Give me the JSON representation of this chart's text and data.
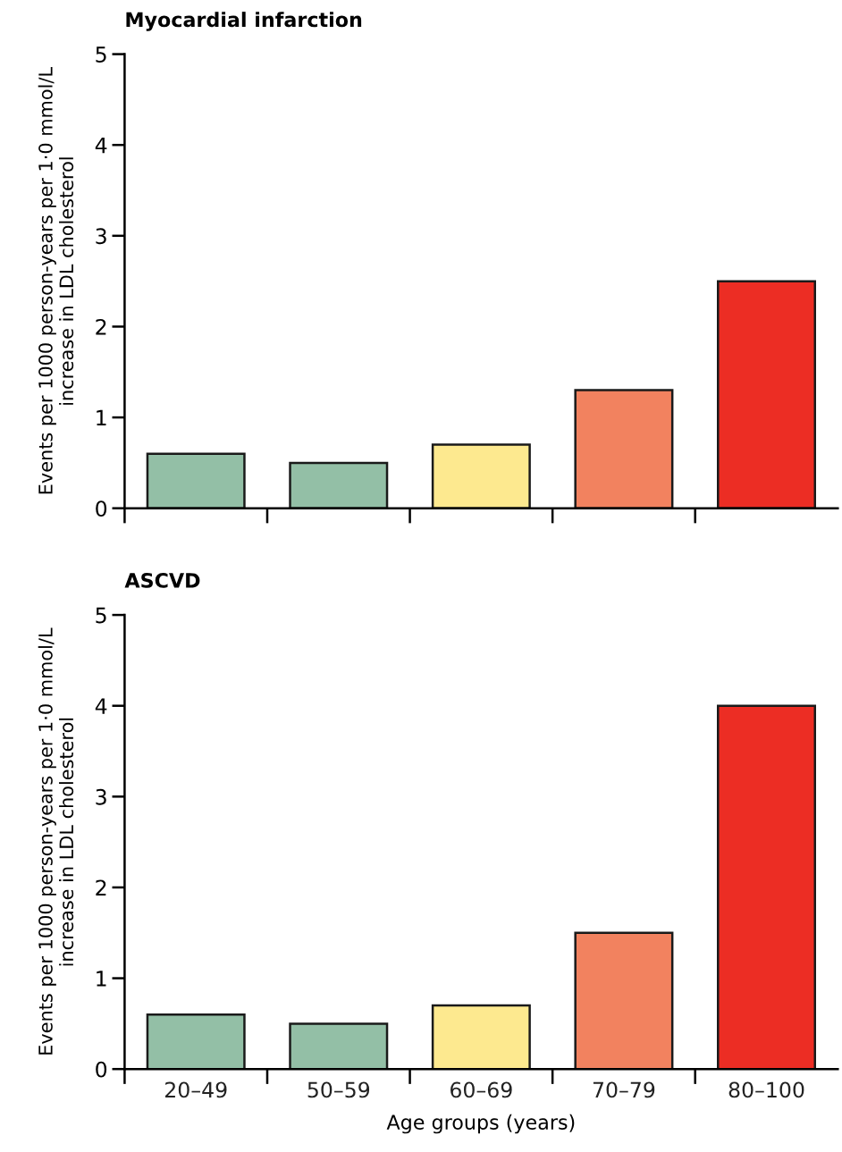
{
  "chart_data": [
    {
      "type": "bar",
      "title": "Myocardial infarction",
      "ylabel": "Events per 1000 person-years per 1·0 mmol/L\nincrease in LDL cholesterol",
      "categories": [
        null,
        null,
        null,
        null,
        null
      ],
      "values": [
        0.6,
        0.5,
        0.7,
        1.3,
        2.5
      ],
      "colors": [
        "#93bfa6",
        "#93bfa6",
        "#fde98f",
        "#f2825f",
        "#ec2d24"
      ],
      "ylim": [
        0,
        5
      ],
      "yticks": [
        0,
        1,
        2,
        3,
        4,
        5
      ],
      "grid": false,
      "tick_labels": "y"
    },
    {
      "type": "bar",
      "title": "ASCVD",
      "ylabel": "Events per 1000 person-years per 1·0 mmol/L\nincrease in LDL cholesterol",
      "xlabel": "Age groups (years)",
      "categories": [
        "20–49",
        "50–59",
        "60–69",
        "70–79",
        "80–100"
      ],
      "values": [
        0.6,
        0.5,
        0.7,
        1.5,
        4.0
      ],
      "colors": [
        "#93bfa6",
        "#93bfa6",
        "#fde98f",
        "#f2825f",
        "#ec2d24"
      ],
      "ylim": [
        0,
        5
      ],
      "yticks": [
        0,
        1,
        2,
        3,
        4,
        5
      ],
      "grid": false
    }
  ]
}
